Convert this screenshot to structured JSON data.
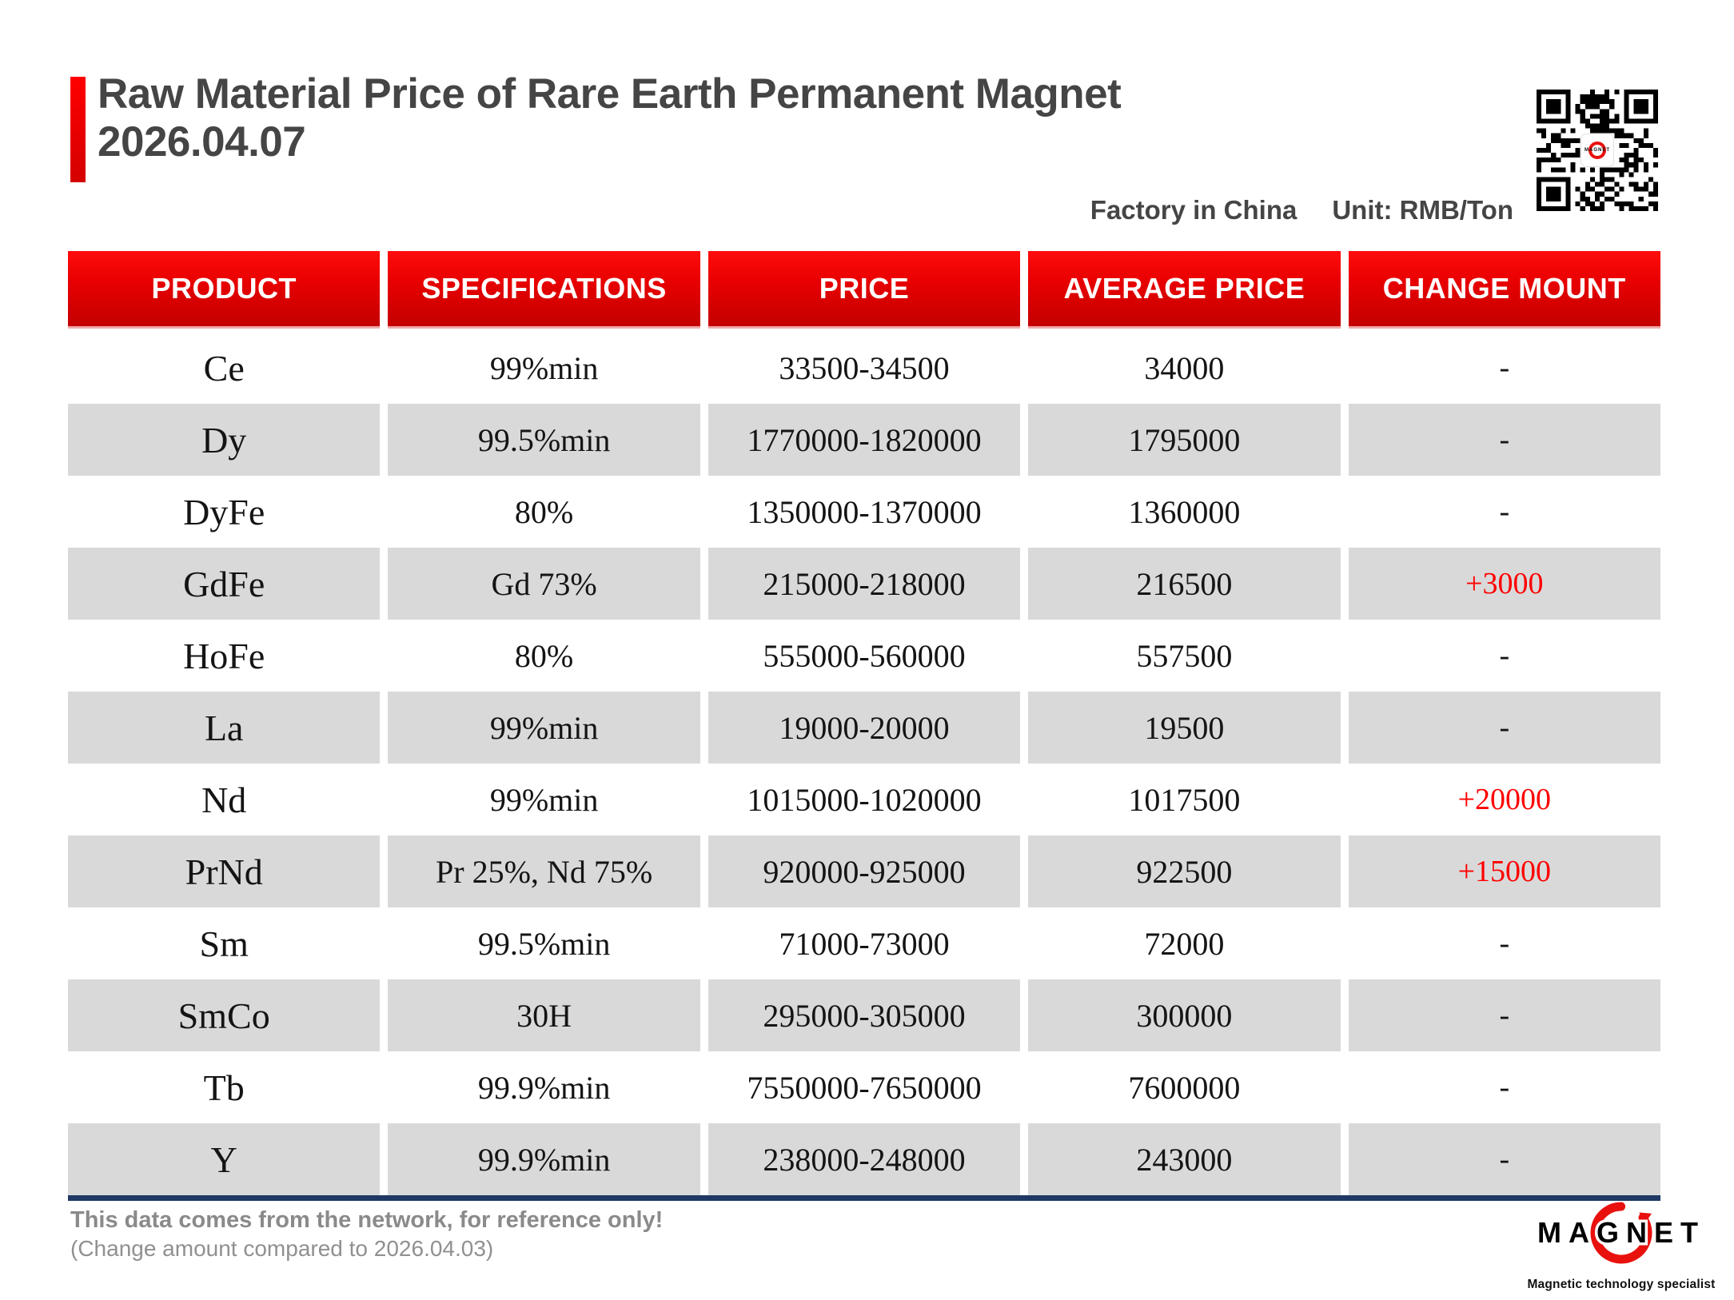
{
  "title": {
    "line1": "Raw Material Price of Rare Earth Permanent Magnet",
    "line2": "2026.04.07"
  },
  "meta": {
    "factory": "Factory in China",
    "unit": "Unit: RMB/Ton"
  },
  "chart_data": {
    "type": "table",
    "title": "Raw Material Price of Rare Earth Permanent Magnet 2026.04.07",
    "columns": [
      "PRODUCT",
      "SPECIFICATIONS",
      "PRICE",
      "AVERAGE PRICE",
      "CHANGE MOUNT"
    ],
    "rows": [
      {
        "product": "Ce",
        "specifications": "99%min",
        "price": "33500-34500",
        "average_price": "34000",
        "change_mount": "-"
      },
      {
        "product": "Dy",
        "specifications": "99.5%min",
        "price": "1770000-1820000",
        "average_price": "1795000",
        "change_mount": "-"
      },
      {
        "product": "DyFe",
        "specifications": "80%",
        "price": "1350000-1370000",
        "average_price": "1360000",
        "change_mount": "-"
      },
      {
        "product": "GdFe",
        "specifications": "Gd 73%",
        "price": "215000-218000",
        "average_price": "216500",
        "change_mount": "+3000"
      },
      {
        "product": "HoFe",
        "specifications": "80%",
        "price": "555000-560000",
        "average_price": "557500",
        "change_mount": "-"
      },
      {
        "product": "La",
        "specifications": "99%min",
        "price": "19000-20000",
        "average_price": "19500",
        "change_mount": "-"
      },
      {
        "product": "Nd",
        "specifications": "99%min",
        "price": "1015000-1020000",
        "average_price": "1017500",
        "change_mount": "+20000"
      },
      {
        "product": "PrNd",
        "specifications": "Pr 25%, Nd 75%",
        "price": "920000-925000",
        "average_price": "922500",
        "change_mount": "+15000"
      },
      {
        "product": "Sm",
        "specifications": "99.5%min",
        "price": "71000-73000",
        "average_price": "72000",
        "change_mount": "-"
      },
      {
        "product": "SmCo",
        "specifications": "30H",
        "price": "295000-305000",
        "average_price": "300000",
        "change_mount": "-"
      },
      {
        "product": "Tb",
        "specifications": "99.9%min",
        "price": "7550000-7650000",
        "average_price": "7600000",
        "change_mount": "-"
      },
      {
        "product": "Y",
        "specifications": "99.9%min",
        "price": "238000-248000",
        "average_price": "243000",
        "change_mount": "-"
      }
    ]
  },
  "footer": {
    "note1": "This data comes from the network, for reference only!",
    "note2": "(Change amount compared to 2026.04.03)",
    "logo_text": "MAGNET",
    "logo_subtitle": "Magnetic technology specialist"
  },
  "colors": {
    "accent_red": "#e80000",
    "header_gradient_top": "#ff0d0d",
    "header_gradient_bottom": "#c40000",
    "row_alt_gray": "#d9d9d9",
    "change_positive_red": "#ff0000",
    "bottom_border_navy": "#1f3864",
    "title_gray": "#454545",
    "note_gray": "#8a8a8a"
  }
}
